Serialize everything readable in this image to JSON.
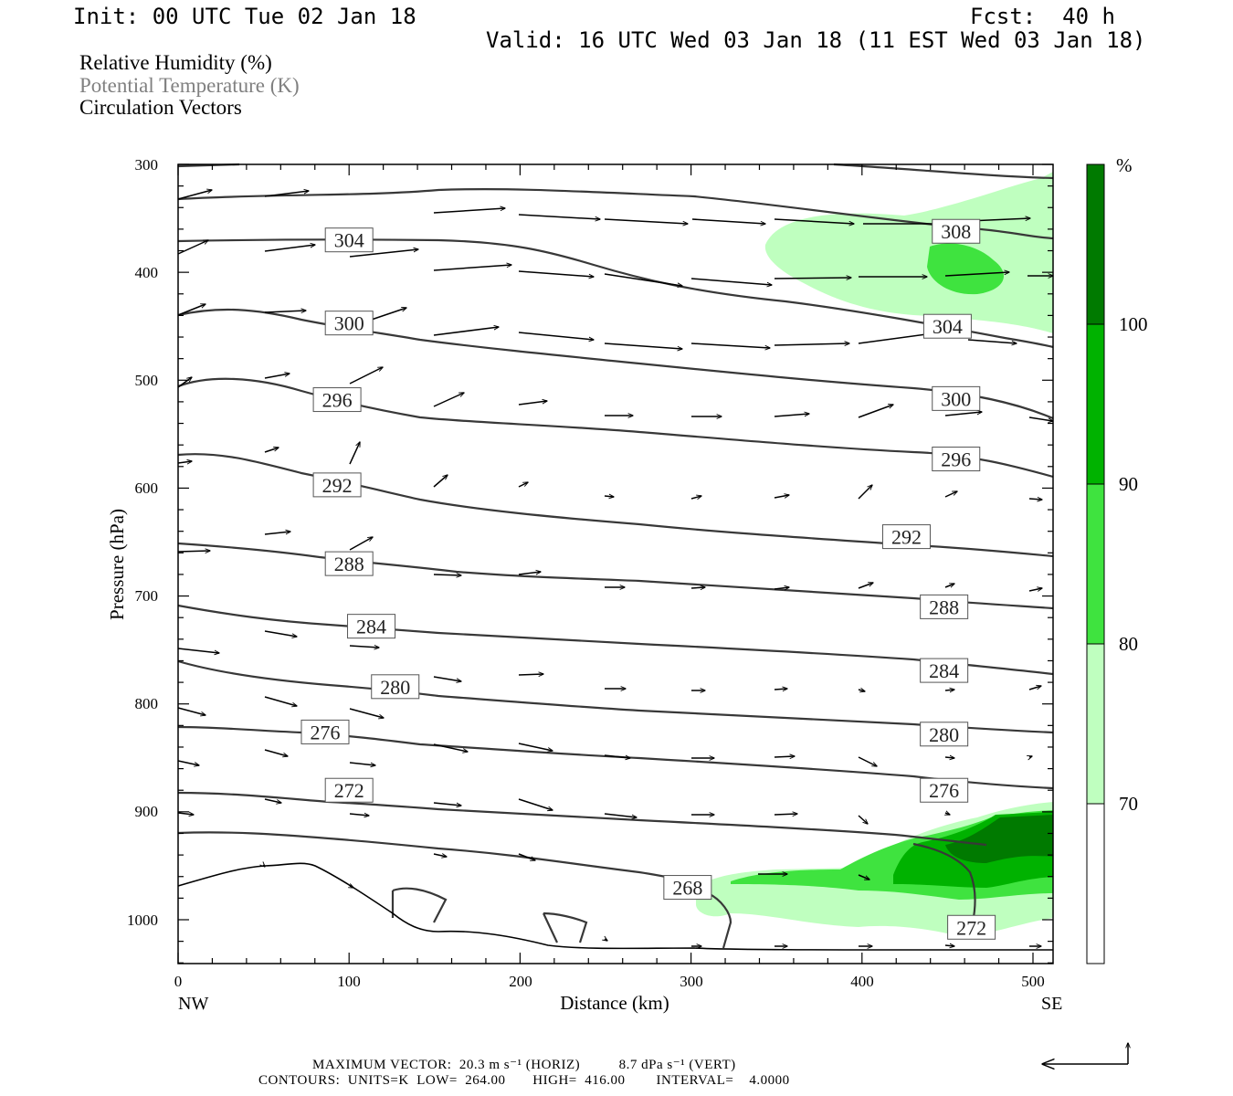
{
  "header": {
    "init": "Init: 00 UTC Tue 02 Jan 18",
    "fcst": "Fcst:  40 h",
    "valid": "Valid: 16 UTC Wed 03 Jan 18 (11 EST Wed 03 Jan 18)"
  },
  "legend": {
    "line1": "Relative Humidity (%)",
    "line2": "Potential Temperature (K)",
    "line3": "Circulation Vectors",
    "line2_color": "#808080"
  },
  "footer": {
    "line1": "MAXIMUM VECTOR:  20.3 m s⁻¹ (HORIZ)          8.7 dPa s⁻¹ (VERT)",
    "line2": "CONTOURS:  UNITS=K  LOW=  264.00       HIGH=  416.00        INTERVAL=    4.0000"
  },
  "colors": {
    "rh_70_80": "#bfffbf",
    "rh_80_90": "#3fe33f",
    "rh_90_100": "#00b200",
    "rh_100": "#007a00",
    "contour": "#383838",
    "terrain": "#000000"
  },
  "chart_data": {
    "type": "cross-section",
    "xlabel": "Distance (km)",
    "ylabel": "Pressure (hPa)",
    "xlim": [
      0,
      512
    ],
    "ylim": [
      1040,
      300
    ],
    "x_ticks": [
      "0",
      "100",
      "200",
      "300",
      "400",
      "500"
    ],
    "y_ticks": [
      "300",
      "400",
      "500",
      "600",
      "700",
      "800",
      "900",
      "1000"
    ],
    "x_end_labels": {
      "left": "NW",
      "right": "SE"
    },
    "colorbar": {
      "unit": "%",
      "levels": [
        70,
        80,
        90,
        100
      ],
      "tick_labels": [
        "70",
        "80",
        "90",
        "100"
      ]
    },
    "isentrope_labels": [
      {
        "value": "308",
        "x": 455,
        "p": 362
      },
      {
        "value": "304",
        "x": 100,
        "p": 370
      },
      {
        "value": "304",
        "x": 450,
        "p": 450
      },
      {
        "value": "300",
        "x": 100,
        "p": 447
      },
      {
        "value": "300",
        "x": 455,
        "p": 517
      },
      {
        "value": "296",
        "x": 93,
        "p": 518
      },
      {
        "value": "296",
        "x": 455,
        "p": 573
      },
      {
        "value": "292",
        "x": 93,
        "p": 597
      },
      {
        "value": "292",
        "x": 426,
        "p": 645
      },
      {
        "value": "288",
        "x": 100,
        "p": 670
      },
      {
        "value": "288",
        "x": 448,
        "p": 710
      },
      {
        "value": "284",
        "x": 113,
        "p": 728
      },
      {
        "value": "284",
        "x": 448,
        "p": 769
      },
      {
        "value": "280",
        "x": 127,
        "p": 784
      },
      {
        "value": "280",
        "x": 448,
        "p": 828
      },
      {
        "value": "276",
        "x": 86,
        "p": 826
      },
      {
        "value": "276",
        "x": 448,
        "p": 880
      },
      {
        "value": "272",
        "x": 100,
        "p": 880
      },
      {
        "value": "272",
        "x": 464,
        "p": 1007
      },
      {
        "value": "268",
        "x": 298,
        "p": 970
      }
    ],
    "max_vector": {
      "horizontal": "20.3 m s-1",
      "vertical": "8.7 dPa s-1"
    },
    "contours": {
      "units": "K",
      "low": 264.0,
      "high": 416.0,
      "interval": 4.0
    }
  }
}
